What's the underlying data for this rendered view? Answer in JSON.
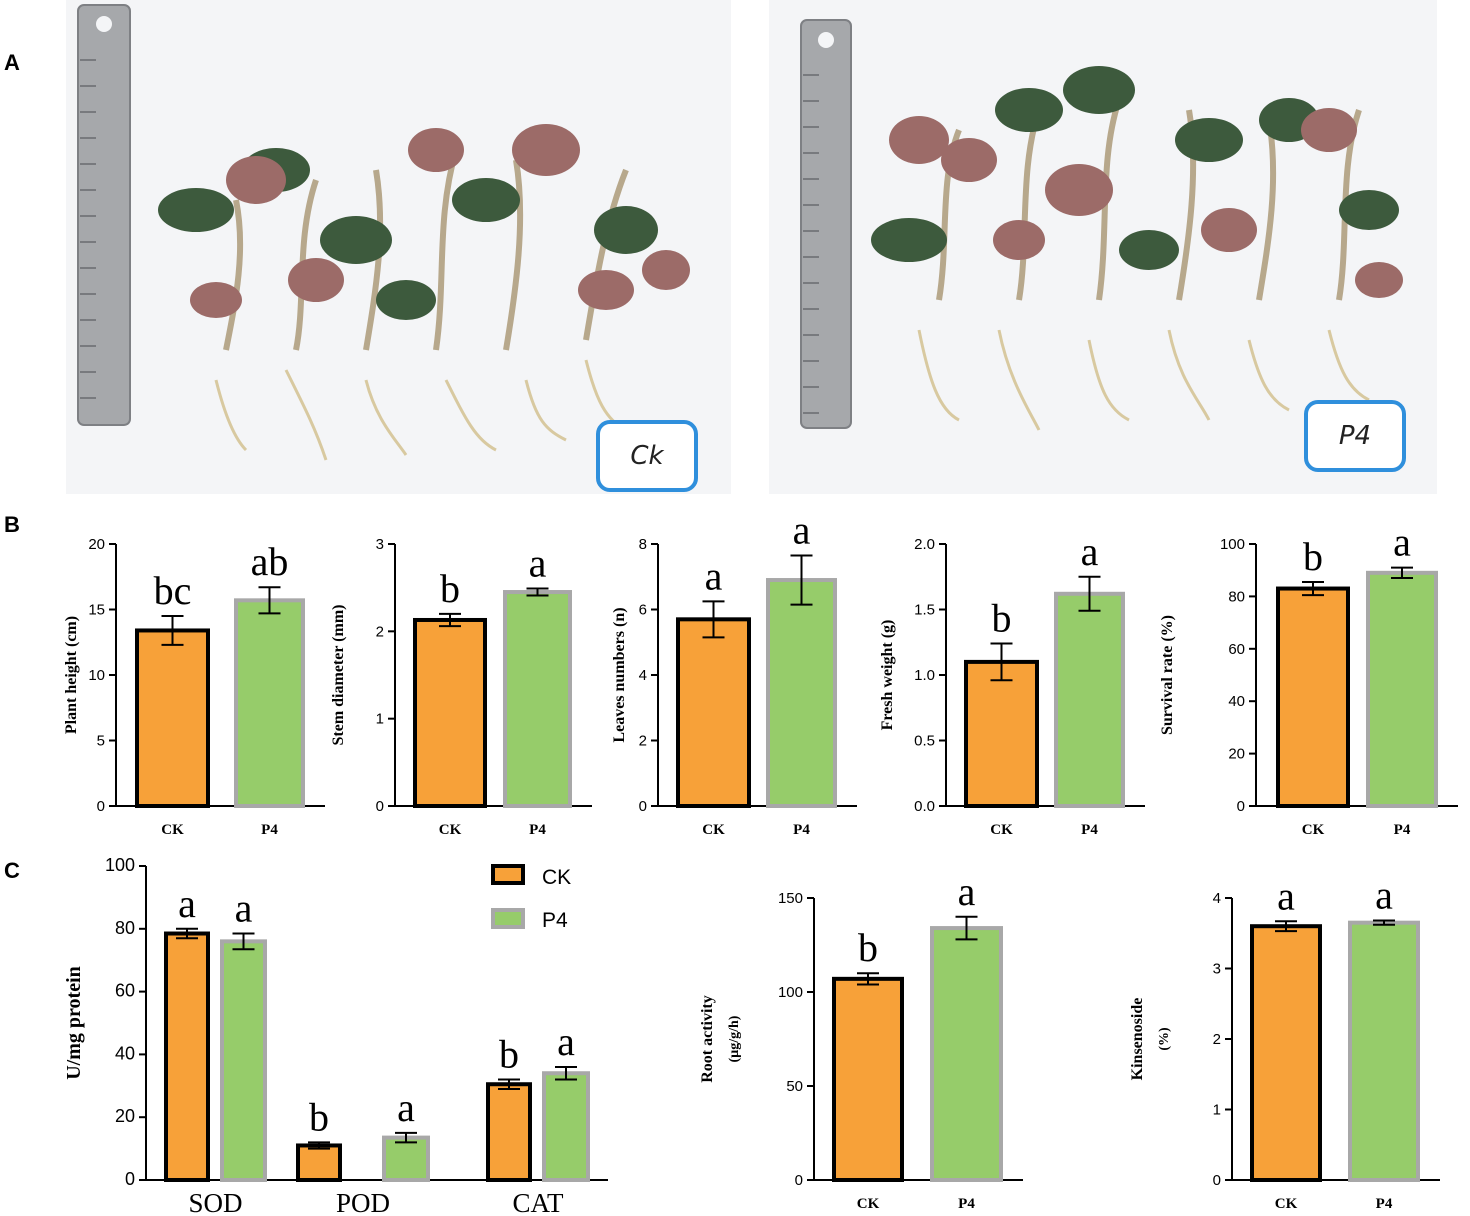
{
  "panels": {
    "a": "A",
    "b": "B",
    "c": "C"
  },
  "photos": {
    "ck_tag": "Ck",
    "p4_tag": "P4"
  },
  "colors": {
    "ck": "#f7a139",
    "p4": "#96cc6a",
    "ck_edge": "#000000",
    "p4_edge": "#a8a8a8"
  },
  "legend": {
    "ck": "CK",
    "p4": "P4"
  },
  "chart_data": [
    {
      "id": "plant-height",
      "type": "bar",
      "categories": [
        "CK",
        "P4"
      ],
      "values": [
        13.4,
        15.7
      ],
      "errors": [
        1.1,
        1.0
      ],
      "letters": [
        "bc",
        "ab"
      ],
      "ylabel": "Plant height (cm)",
      "ylim": [
        0,
        20
      ],
      "ticks": [
        0,
        5,
        10,
        15,
        20
      ],
      "tick_labels": [
        "0",
        "5",
        "10",
        "15",
        "20"
      ]
    },
    {
      "id": "stem-diameter",
      "type": "bar",
      "categories": [
        "CK",
        "P4"
      ],
      "values": [
        2.13,
        2.45
      ],
      "errors": [
        0.07,
        0.04
      ],
      "letters": [
        "b",
        "a"
      ],
      "ylabel": "Stem diameter (mm)",
      "ylim": [
        0,
        3
      ],
      "ticks": [
        0,
        1,
        2,
        3
      ],
      "tick_labels": [
        "0",
        "1",
        "2",
        "3"
      ]
    },
    {
      "id": "leaves-numbers",
      "type": "bar",
      "categories": [
        "CK",
        "P4"
      ],
      "values": [
        5.7,
        6.9
      ],
      "errors": [
        0.55,
        0.75
      ],
      "letters": [
        "a",
        "a"
      ],
      "ylabel": "Leaves numbers (n)",
      "ylim": [
        0,
        8
      ],
      "ticks": [
        0,
        2,
        4,
        6,
        8
      ],
      "tick_labels": [
        "0",
        "2",
        "4",
        "6",
        "8"
      ]
    },
    {
      "id": "fresh-weight",
      "type": "bar",
      "categories": [
        "CK",
        "P4"
      ],
      "values": [
        1.1,
        1.62
      ],
      "errors": [
        0.14,
        0.13
      ],
      "letters": [
        "b",
        "a"
      ],
      "ylabel": "Fresh weight (g)",
      "ylim": [
        0,
        2
      ],
      "ticks": [
        0,
        0.5,
        1,
        1.5,
        2
      ],
      "tick_labels": [
        "0.0",
        "0.5",
        "1.0",
        "1.5",
        "2.0"
      ]
    },
    {
      "id": "survival-rate",
      "type": "bar",
      "categories": [
        "CK",
        "P4"
      ],
      "values": [
        83,
        89
      ],
      "errors": [
        2.5,
        2
      ],
      "letters": [
        "b",
        "a"
      ],
      "ylabel": "Survival rate (%)",
      "ylim": [
        0,
        100
      ],
      "ticks": [
        0,
        20,
        40,
        60,
        80,
        100
      ],
      "tick_labels": [
        "0",
        "20",
        "40",
        "60",
        "80",
        "100"
      ]
    },
    {
      "id": "enzymes",
      "type": "bar",
      "categories": [
        "SOD",
        "POD",
        "CAT"
      ],
      "series": [
        {
          "name": "CK",
          "values": [
            78.5,
            11,
            30.5
          ],
          "errors": [
            1.5,
            1,
            1.5
          ],
          "letters": [
            "a",
            "b",
            "b"
          ]
        },
        {
          "name": "P4",
          "values": [
            76,
            13.5,
            34
          ],
          "errors": [
            2.5,
            1.5,
            2
          ],
          "letters": [
            "a",
            "a",
            "a"
          ]
        }
      ],
      "ylabel": "U/mg protein",
      "ylim": [
        0,
        100
      ],
      "ticks": [
        0,
        20,
        40,
        60,
        80,
        100
      ],
      "tick_labels": [
        "0",
        "20",
        "40",
        "60",
        "80",
        "100"
      ],
      "legend": "top-right"
    },
    {
      "id": "root-activity",
      "type": "bar",
      "categories": [
        "CK",
        "P4"
      ],
      "values": [
        107,
        134
      ],
      "errors": [
        3,
        6
      ],
      "letters": [
        "b",
        "a"
      ],
      "ylabel": "Root activity",
      "ylabel2": "(µg/g/h)",
      "ylim": [
        0,
        150
      ],
      "ticks": [
        0,
        50,
        100,
        150
      ],
      "tick_labels": [
        "0",
        "50",
        "100",
        "150"
      ]
    },
    {
      "id": "kinsenoside",
      "type": "bar",
      "categories": [
        "CK",
        "P4"
      ],
      "values": [
        3.6,
        3.65
      ],
      "errors": [
        0.07,
        0.03
      ],
      "letters": [
        "a",
        "a"
      ],
      "ylabel": "Kinsenoside",
      "ylabel2": "(%)",
      "ylim": [
        0,
        4
      ],
      "ticks": [
        0,
        1,
        2,
        3,
        4
      ],
      "tick_labels": [
        "0",
        "1",
        "2",
        "3",
        "4"
      ]
    }
  ]
}
